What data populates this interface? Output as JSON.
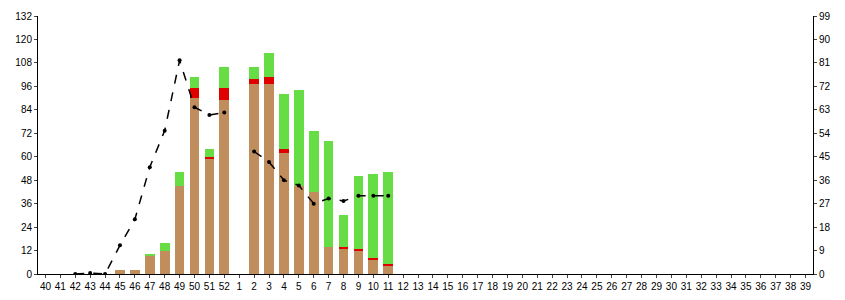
{
  "chart_data": {
    "type": "bar",
    "stacked": true,
    "grid": false,
    "categories": [
      "40",
      "41",
      "42",
      "43",
      "44",
      "45",
      "46",
      "47",
      "48",
      "49",
      "50",
      "51",
      "52",
      "1",
      "2",
      "3",
      "4",
      "5",
      "6",
      "7",
      "8",
      "9",
      "10",
      "11",
      "12",
      "13",
      "14",
      "15",
      "16",
      "17",
      "18",
      "19",
      "20",
      "21",
      "22",
      "23",
      "24",
      "25",
      "26",
      "27",
      "28",
      "29",
      "30",
      "31",
      "32",
      "33",
      "34",
      "35",
      "36",
      "37",
      "38",
      "39"
    ],
    "series": [
      {
        "type": "bar",
        "color": "#c08e5c",
        "values": [
          0,
          0,
          0,
          0,
          0,
          2,
          2,
          9,
          12,
          45,
          90,
          59,
          89,
          0,
          97,
          97,
          62,
          45,
          42,
          14,
          13,
          12,
          7,
          4,
          0,
          0,
          0,
          0,
          0,
          0,
          0,
          0,
          0,
          0,
          0,
          0,
          0,
          0,
          0,
          0,
          0,
          0,
          0,
          0,
          0,
          0,
          0,
          0,
          0,
          0,
          0,
          0
        ]
      },
      {
        "type": "bar",
        "color": "#e00000",
        "values": [
          0,
          0,
          0,
          0,
          0,
          0,
          0,
          0,
          0,
          0,
          5,
          1,
          6,
          0,
          3,
          4,
          2,
          0,
          0,
          0,
          1,
          1,
          1,
          1,
          0,
          0,
          0,
          0,
          0,
          0,
          0,
          0,
          0,
          0,
          0,
          0,
          0,
          0,
          0,
          0,
          0,
          0,
          0,
          0,
          0,
          0,
          0,
          0,
          0,
          0,
          0,
          0
        ]
      },
      {
        "type": "bar",
        "color": "#66dd44",
        "values": [
          0,
          0,
          0,
          0,
          0,
          0,
          0,
          1,
          4,
          7,
          6,
          4,
          11,
          0,
          6,
          12,
          28,
          49,
          31,
          54,
          16,
          37,
          43,
          47,
          0,
          0,
          0,
          0,
          0,
          0,
          0,
          0,
          0,
          0,
          0,
          0,
          0,
          0,
          0,
          0,
          0,
          0,
          0,
          0,
          0,
          0,
          0,
          0,
          0,
          0,
          0,
          0
        ]
      },
      {
        "type": "line",
        "axis": "y2",
        "color": "#000000",
        "line_style": "dash",
        "marker": "circle",
        "values": [
          null,
          null,
          0,
          0.4,
          0,
          11,
          21,
          41,
          55,
          82,
          64,
          61,
          62,
          null,
          47,
          43,
          36,
          34,
          27,
          29,
          28,
          30,
          30,
          30,
          null,
          null,
          null,
          null,
          null,
          null,
          null,
          null,
          null,
          null,
          null,
          null,
          null,
          null,
          null,
          null,
          null,
          null,
          null,
          null,
          null,
          null,
          null,
          null,
          null,
          null,
          null,
          null
        ]
      }
    ],
    "ylim": [
      0,
      132
    ],
    "yticks": [
      0,
      12,
      24,
      36,
      48,
      60,
      72,
      84,
      96,
      108,
      120,
      132
    ],
    "y2lim": [
      0,
      99
    ],
    "y2ticks": [
      0,
      9,
      18,
      27,
      36,
      45,
      54,
      63,
      72,
      81,
      90,
      99
    ]
  }
}
